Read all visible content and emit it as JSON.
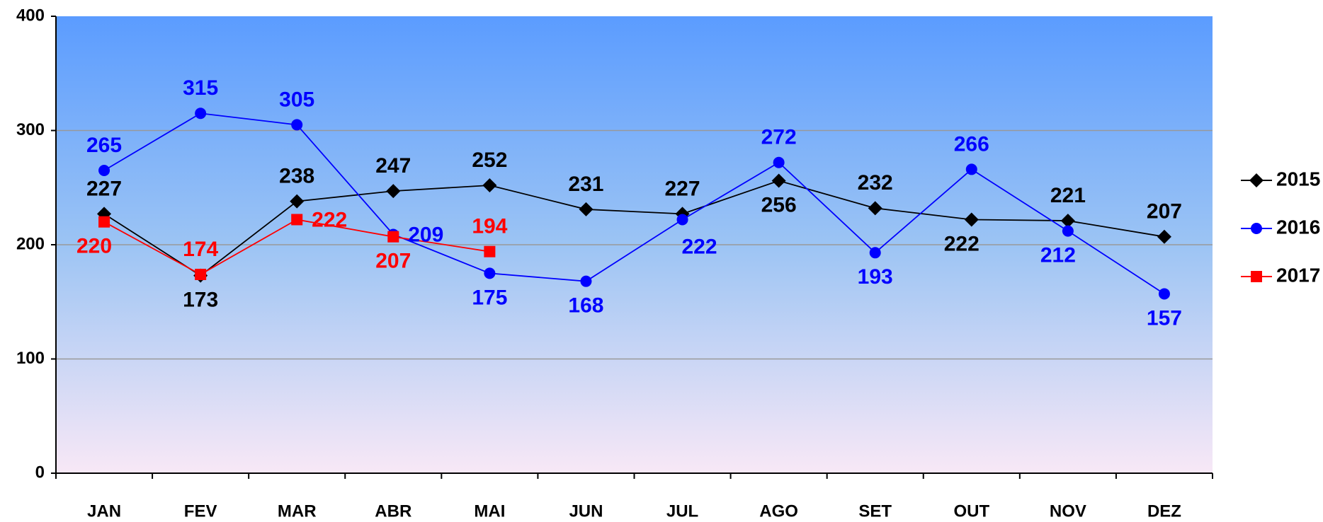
{
  "chart_data": {
    "type": "line",
    "categories": [
      "JAN",
      "FEV",
      "MAR",
      "ABR",
      "MAI",
      "JUN",
      "JUL",
      "AGO",
      "SET",
      "OUT",
      "NOV",
      "DEZ"
    ],
    "series": [
      {
        "name": "2015",
        "color": "#000000",
        "marker": "diamond",
        "values": [
          227,
          173,
          238,
          247,
          252,
          231,
          227,
          256,
          232,
          222,
          221,
          207
        ]
      },
      {
        "name": "2016",
        "color": "#0000ff",
        "marker": "circle",
        "values": [
          265,
          315,
          305,
          209,
          175,
          168,
          222,
          272,
          193,
          266,
          212,
          157
        ]
      },
      {
        "name": "2017",
        "color": "#ff0000",
        "marker": "square",
        "values": [
          220,
          174,
          222,
          207,
          194,
          null,
          null,
          null,
          null,
          null,
          null,
          null
        ]
      }
    ],
    "ylim": [
      0,
      400
    ],
    "yticks": [
      0,
      100,
      200,
      300,
      400
    ],
    "grid": true,
    "legend": "right"
  }
}
